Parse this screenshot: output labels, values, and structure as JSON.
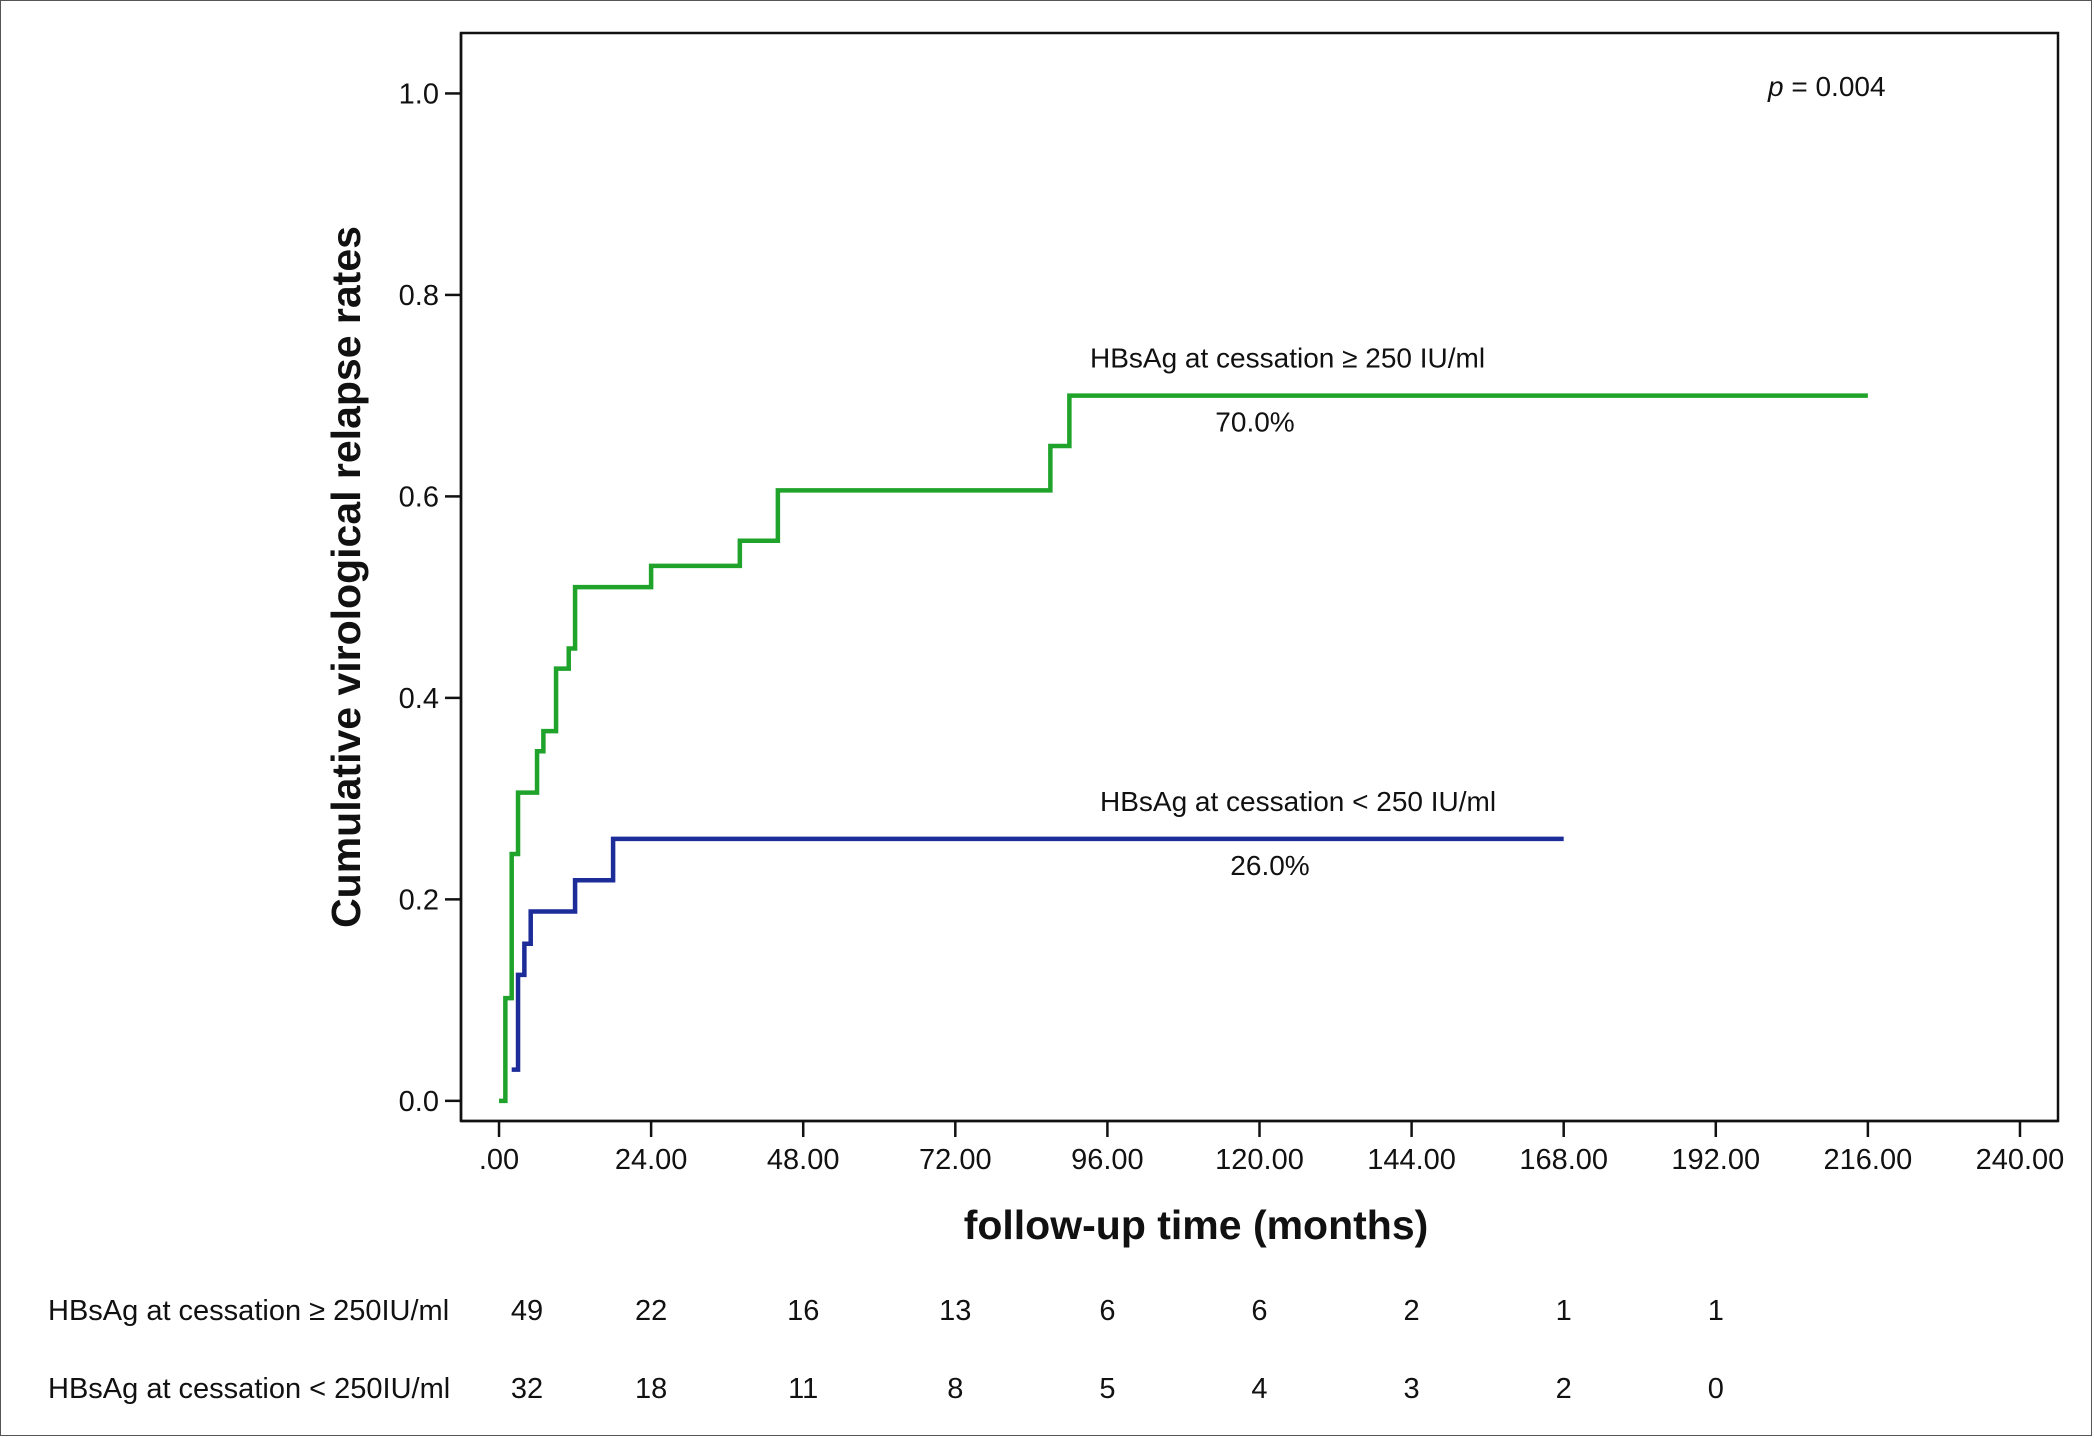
{
  "chart_data": {
    "type": "line",
    "step": true,
    "xlabel": "follow-up time (months)",
    "ylabel": "Cumulative virological relapse rates",
    "xlim": [
      -6,
      246
    ],
    "ylim": [
      -0.02,
      1.06
    ],
    "x_ticks": [
      0,
      24,
      48,
      72,
      96,
      120,
      144,
      168,
      192,
      216,
      240
    ],
    "x_tick_labels": [
      ".00",
      "24.00",
      "48.00",
      "72.00",
      "96.00",
      "120.00",
      "144.00",
      "168.00",
      "192.00",
      "216.00",
      "240.00"
    ],
    "y_ticks": [
      0,
      0.2,
      0.4,
      0.6,
      0.8,
      1.0
    ],
    "y_tick_labels": [
      "0.0",
      "0.2",
      "0.4",
      "0.6",
      "0.8",
      "1.0"
    ],
    "grid": false,
    "legend": "none",
    "series": [
      {
        "name": "HBsAg at cessation ≥ 250 IU/ml",
        "color": "#1fa32b",
        "end_label": "70.0%",
        "points": [
          [
            0,
            0
          ],
          [
            1,
            0.102
          ],
          [
            2,
            0.245
          ],
          [
            3,
            0.306
          ],
          [
            6,
            0.347
          ],
          [
            7,
            0.367
          ],
          [
            9,
            0.429
          ],
          [
            11,
            0.449
          ],
          [
            12,
            0.51
          ],
          [
            24,
            0.531
          ],
          [
            38,
            0.556
          ],
          [
            44,
            0.606
          ],
          [
            87,
            0.65
          ],
          [
            90,
            0.7
          ],
          [
            216,
            0.7
          ]
        ]
      },
      {
        "name": "HBsAg at cessation < 250 IU/ml",
        "color": "#1c2c99",
        "end_label": "26.0%",
        "points": [
          [
            2,
            0.031
          ],
          [
            3,
            0.125
          ],
          [
            4,
            0.156
          ],
          [
            5,
            0.188
          ],
          [
            12,
            0.219
          ],
          [
            18,
            0.26
          ],
          [
            168,
            0.26
          ]
        ]
      }
    ],
    "annotations": [
      {
        "text": "p = 0.004",
        "italic_part": "p"
      }
    ],
    "risk_table": {
      "times": [
        0,
        24,
        48,
        72,
        96,
        120,
        144,
        168,
        192
      ],
      "rows": [
        {
          "label": "HBsAg at cessation ≥ 250IU/ml",
          "counts": [
            "49",
            "22",
            "16",
            "13",
            "6",
            "6",
            "2",
            "1",
            "1"
          ]
        },
        {
          "label": "HBsAg at cessation < 250IU/ml",
          "counts": [
            "32",
            "18",
            "11",
            "8",
            "5",
            "4",
            "3",
            "2",
            "0"
          ]
        }
      ]
    }
  }
}
